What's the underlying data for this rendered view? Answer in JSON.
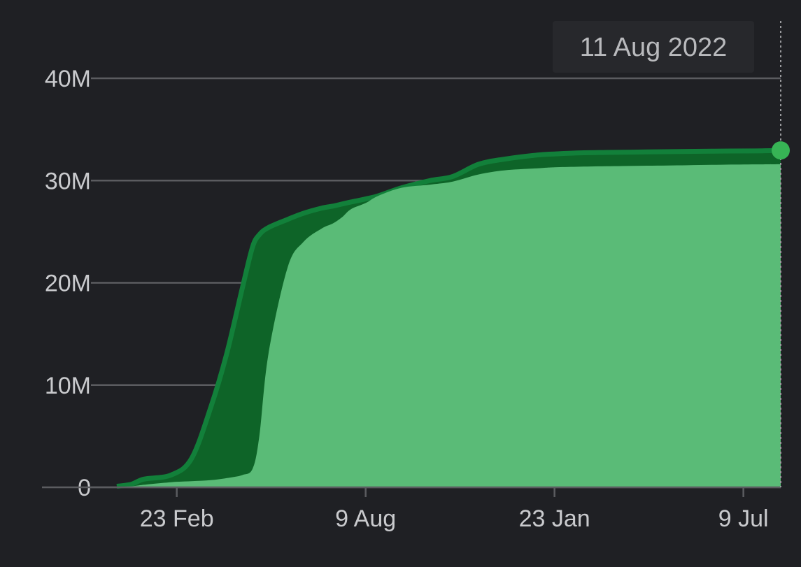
{
  "colors": {
    "background": "#1f2024",
    "gridline": "#5b5c60",
    "label": "#c9cacd",
    "series_total_fill": "#0e6428",
    "series_total_stroke": "#12803a",
    "series_second_fill": "#5abb77",
    "marker": "#37b355",
    "tooltip_bg": "#27282c"
  },
  "tooltip": {
    "date": "11 Aug 2022"
  },
  "chart_data": {
    "type": "area",
    "title": "",
    "xlabel": "",
    "ylabel": "",
    "ylim": [
      0,
      40000000
    ],
    "xlim": [
      "2021-01-01",
      "2022-08-11"
    ],
    "grid": true,
    "y_ticks": [
      {
        "value": 0,
        "label": "0"
      },
      {
        "value": 10000000,
        "label": "10M"
      },
      {
        "value": 20000000,
        "label": "20M"
      },
      {
        "value": 30000000,
        "label": "30M"
      },
      {
        "value": 40000000,
        "label": "40M"
      }
    ],
    "x_ticks": [
      {
        "date": "2021-02-23",
        "label": "23 Feb"
      },
      {
        "date": "2021-08-09",
        "label": "9 Aug"
      },
      {
        "date": "2022-01-23",
        "label": "23 Jan"
      },
      {
        "date": "2022-07-09",
        "label": "9 Jul"
      }
    ],
    "x": [
      "2021-01-01",
      "2021-01-14",
      "2021-01-25",
      "2021-02-18",
      "2021-03-08",
      "2021-03-25",
      "2021-04-08",
      "2021-04-22",
      "2021-05-01",
      "2021-05-07",
      "2021-05-15",
      "2021-06-01",
      "2021-06-15",
      "2021-07-01",
      "2021-07-11",
      "2021-07-19",
      "2021-07-27",
      "2021-08-09",
      "2021-08-20",
      "2021-09-10",
      "2021-10-05",
      "2021-10-25",
      "2021-11-17",
      "2021-12-10",
      "2022-01-08",
      "2022-01-23",
      "2022-02-12",
      "2022-03-10",
      "2022-04-15",
      "2022-05-20",
      "2022-06-20",
      "2022-07-20",
      "2022-08-11"
    ],
    "series": [
      {
        "values": [
          100000,
          300000,
          800000,
          1200000,
          2800000,
          7800000,
          13000000,
          19500000,
          23500000,
          24700000,
          25400000,
          26200000,
          26800000,
          27300000,
          27500000,
          27700000,
          27900000,
          28200000,
          28500000,
          29300000,
          30000000,
          30400000,
          31600000,
          32100000,
          32500000,
          32600000,
          32700000,
          32750000,
          32800000,
          32850000,
          32880000,
          32900000,
          32950000
        ]
      },
      {
        "values": [
          50000,
          100000,
          250000,
          500000,
          600000,
          700000,
          900000,
          1200000,
          1800000,
          5000000,
          13000000,
          21500000,
          24000000,
          25300000,
          25800000,
          26400000,
          27200000,
          27800000,
          28500000,
          29300000,
          29600000,
          29900000,
          30600000,
          31000000,
          31200000,
          31300000,
          31350000,
          31400000,
          31450000,
          31500000,
          31550000,
          31580000,
          31600000
        ]
      }
    ]
  }
}
